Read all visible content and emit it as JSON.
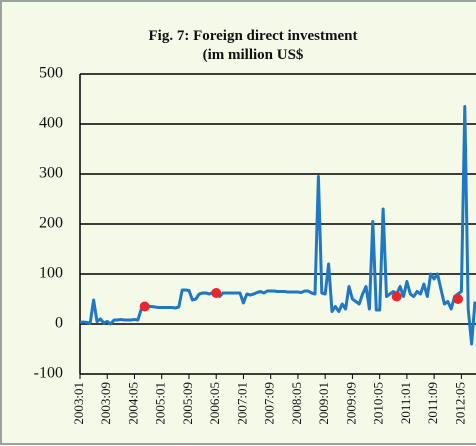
{
  "chart_data": {
    "type": "line",
    "title": "Fig. 7: Foreign direct investment",
    "subtitle": "(im million US$",
    "categories": [
      "2003:01",
      null,
      null,
      null,
      null,
      null,
      null,
      null,
      "2003:09",
      null,
      null,
      null,
      null,
      null,
      null,
      null,
      "2004:05",
      null,
      null,
      null,
      null,
      null,
      null,
      null,
      "2005:01",
      null,
      null,
      null,
      null,
      null,
      null,
      null,
      "2005:09",
      null,
      null,
      null,
      null,
      null,
      null,
      null,
      "2006:05",
      null,
      null,
      null,
      null,
      null,
      null,
      null,
      "2007:01",
      null,
      null,
      null,
      null,
      null,
      null,
      null,
      "2007:09",
      null,
      null,
      null,
      null,
      null,
      null,
      null,
      "2008:05",
      null,
      null,
      null,
      null,
      null,
      null,
      null,
      "2009:01",
      null,
      null,
      null,
      null,
      null,
      null,
      null,
      "2009:09",
      null,
      null,
      null,
      null,
      null,
      null,
      null,
      "2010:05",
      null,
      null,
      null,
      null,
      null,
      null,
      null,
      "2011:01",
      null,
      null,
      null,
      null,
      null,
      null,
      null,
      "2011:09",
      null,
      null,
      null,
      null,
      null,
      null,
      null,
      "2012:05",
      null,
      null,
      null,
      null
    ],
    "series": [
      {
        "color": "#1f78c1",
        "mode": "lines",
        "values": [
          3,
          4,
          3,
          2,
          48,
          5,
          10,
          2,
          5,
          0,
          8,
          8,
          9,
          8,
          8,
          8,
          9,
          8,
          30,
          36,
          35,
          35,
          34,
          33,
          33,
          33,
          33,
          33,
          32,
          34,
          68,
          68,
          67,
          48,
          50,
          60,
          62,
          62,
          60,
          63,
          62,
          55,
          62,
          62,
          62,
          62,
          62,
          62,
          42,
          60,
          58,
          60,
          63,
          65,
          62,
          66,
          66,
          66,
          65,
          65,
          65,
          64,
          64,
          64,
          64,
          63,
          66,
          66,
          62,
          60,
          295,
          62,
          60,
          120,
          25,
          35,
          25,
          40,
          30,
          75,
          50,
          45,
          40,
          60,
          75,
          30,
          205,
          28,
          28,
          230,
          55,
          60,
          65,
          60,
          75,
          55,
          85,
          60,
          55,
          65,
          60,
          80,
          55,
          100,
          90,
          100,
          70,
          40,
          45,
          30,
          55,
          60,
          65,
          435,
          30,
          -40,
          45
        ]
      },
      {
        "color": "#e8262c",
        "mode": "markers",
        "values": [
          null,
          null,
          null,
          null,
          null,
          null,
          null,
          null,
          null,
          null,
          null,
          null,
          null,
          null,
          null,
          null,
          null,
          null,
          null,
          35,
          null,
          null,
          null,
          null,
          null,
          null,
          null,
          null,
          null,
          null,
          null,
          null,
          null,
          null,
          null,
          null,
          null,
          null,
          null,
          null,
          62,
          null,
          null,
          null,
          null,
          null,
          null,
          null,
          null,
          null,
          null,
          null,
          null,
          null,
          null,
          null,
          null,
          null,
          null,
          null,
          null,
          null,
          null,
          null,
          null,
          null,
          null,
          null,
          null,
          null,
          null,
          null,
          null,
          null,
          null,
          null,
          null,
          null,
          null,
          null,
          null,
          null,
          null,
          null,
          null,
          null,
          null,
          null,
          null,
          null,
          null,
          null,
          null,
          55,
          null,
          null,
          null,
          null,
          null,
          null,
          null,
          null,
          null,
          null,
          null,
          null,
          null,
          null,
          null,
          null,
          null,
          50,
          null,
          null,
          null,
          null,
          null
        ]
      }
    ],
    "ylim": [
      -100,
      500
    ],
    "yticks": [
      -100,
      0,
      100,
      200,
      300,
      400,
      500
    ],
    "grid": true
  }
}
